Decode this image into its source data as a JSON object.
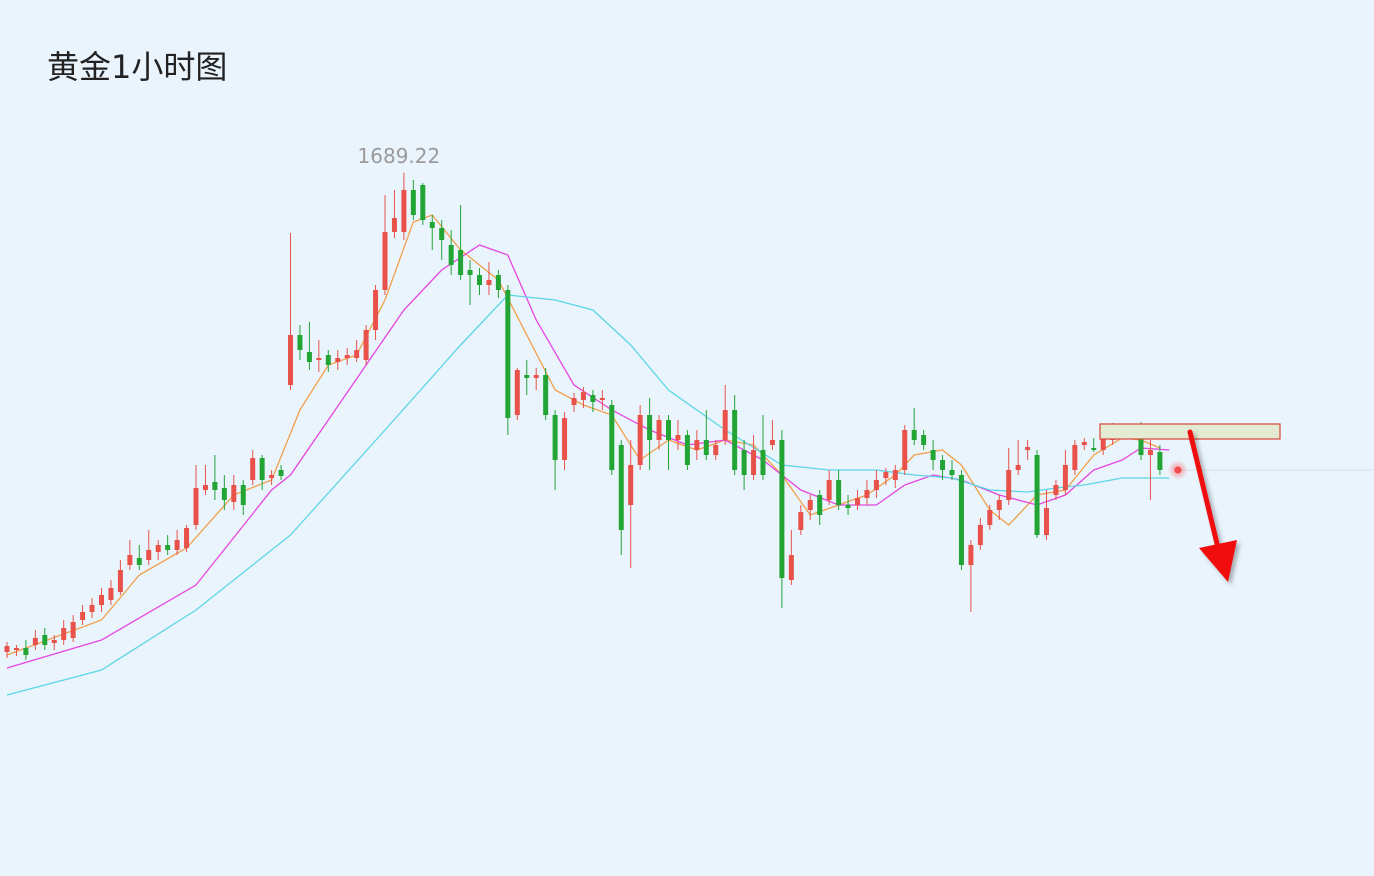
{
  "chart_data": {
    "type": "candlestick",
    "title": "黄金1小时图",
    "up_color": "#e8524a",
    "down_color": "#22a535",
    "ylim": [
      1620,
      1700
    ],
    "open": [
      1641.3,
      1641.5,
      1641.7,
      1642.0,
      1643.0,
      1642.2,
      1642.5,
      1642.7,
      1644.5,
      1645.3,
      1646.0,
      1646.5,
      1647.3,
      1650.0,
      1650.7,
      1650.5,
      1651.3,
      1652.0,
      1651.5,
      1651.7,
      1654.0,
      1657.5,
      1658.3,
      1657.7,
      1656.3,
      1658.0,
      1658.5,
      1660.7,
      1658.7,
      1659.5,
      1668.0,
      1673.0,
      1671.3,
      1670.5,
      1671.0,
      1670.3,
      1670.7,
      1670.7,
      1670.5,
      1673.5,
      1677.5,
      1683.3,
      1683.3,
      1687.5,
      1688.0,
      1684.3,
      1683.7,
      1682.0,
      1681.5,
      1679.5,
      1679.0,
      1678.0,
      1679.0,
      1677.5,
      1665.0,
      1669.0,
      1668.7,
      1669.0,
      1665.0,
      1660.5,
      1666.0,
      1666.5,
      1667.0,
      1666.5,
      1666.0,
      1662.0,
      1656.0,
      1660.0,
      1665.0,
      1662.5,
      1664.5,
      1662.5,
      1663.0,
      1661.5,
      1662.5,
      1661.0,
      1662.5,
      1665.5,
      1661.5,
      1659.0,
      1661.5,
      1662.0,
      1662.5,
      1648.5,
      1653.5,
      1655.5,
      1657.0,
      1656.5,
      1658.5,
      1656.0,
      1656.0,
      1656.7,
      1657.5,
      1658.7,
      1658.5,
      1659.5,
      1663.5,
      1663.0,
      1661.5,
      1660.5,
      1659.5,
      1659.0,
      1650.0,
      1652.0,
      1654.0,
      1655.5,
      1656.5,
      1659.5,
      1661.5,
      1661.0,
      1653.0,
      1657.0,
      1657.5,
      1659.5,
      1662.0,
      1661.7,
      1661.5,
      1662.5,
      1663.3,
      1663.5,
      1664.0,
      1661.0,
      1661.3
    ],
    "high": [
      1642.3,
      1642.0,
      1642.5,
      1643.5,
      1643.7,
      1643.0,
      1644.5,
      1645.0,
      1646.0,
      1646.7,
      1647.7,
      1648.5,
      1650.5,
      1652.5,
      1652.0,
      1653.5,
      1652.5,
      1653.0,
      1653.5,
      1654.0,
      1660.0,
      1660.0,
      1661.0,
      1659.0,
      1659.0,
      1658.5,
      1661.5,
      1661.0,
      1659.5,
      1660.0,
      1683.2,
      1674.0,
      1674.3,
      1672.5,
      1671.5,
      1671.5,
      1671.7,
      1672.5,
      1674.0,
      1678.0,
      1687.0,
      1687.5,
      1689.22,
      1688.5,
      1688.2,
      1685.0,
      1684.5,
      1683.5,
      1686.0,
      1680.5,
      1679.7,
      1680.3,
      1679.5,
      1678.0,
      1669.7,
      1670.5,
      1669.7,
      1669.7,
      1665.5,
      1665.3,
      1667.2,
      1667.8,
      1667.5,
      1667.5,
      1666.5,
      1662.5,
      1662.5,
      1666.0,
      1666.7,
      1665.0,
      1665.0,
      1664.5,
      1663.5,
      1663.5,
      1665.5,
      1662.5,
      1668.0,
      1667.0,
      1662.5,
      1663.0,
      1665.0,
      1664.5,
      1663.5,
      1653.5,
      1656.0,
      1657.0,
      1657.5,
      1659.5,
      1659.5,
      1657.0,
      1657.5,
      1658.5,
      1659.5,
      1659.7,
      1660.0,
      1664.0,
      1665.7,
      1663.5,
      1662.5,
      1661.0,
      1660.5,
      1659.5,
      1652.5,
      1654.7,
      1656.0,
      1657.0,
      1661.7,
      1662.5,
      1662.5,
      1661.5,
      1657.5,
      1658.5,
      1661.5,
      1662.5,
      1662.7,
      1662.7,
      1663.5,
      1664.2,
      1664.0,
      1664.0,
      1664.3,
      1662.5,
      1662.0
    ],
    "low": [
      1640.7,
      1640.9,
      1640.5,
      1641.5,
      1641.5,
      1641.5,
      1642.0,
      1642.3,
      1644.0,
      1644.7,
      1645.3,
      1646.0,
      1647.0,
      1649.5,
      1649.5,
      1650.0,
      1650.5,
      1651.0,
      1651.0,
      1651.3,
      1653.5,
      1657.0,
      1656.5,
      1655.5,
      1655.5,
      1655.0,
      1658.0,
      1657.5,
      1658.0,
      1658.5,
      1667.5,
      1670.5,
      1669.5,
      1669.3,
      1669.3,
      1669.5,
      1670.0,
      1670.3,
      1670.0,
      1672.5,
      1677.0,
      1682.7,
      1682.5,
      1684.5,
      1684.0,
      1681.5,
      1680.5,
      1679.0,
      1678.5,
      1676.0,
      1677.0,
      1677.0,
      1676.7,
      1663.0,
      1664.5,
      1667.0,
      1667.5,
      1664.5,
      1657.5,
      1659.5,
      1665.3,
      1665.7,
      1665.3,
      1665.5,
      1659.0,
      1651.0,
      1649.7,
      1659.5,
      1659.5,
      1661.5,
      1659.5,
      1661.5,
      1659.5,
      1660.5,
      1660.5,
      1660.5,
      1662.0,
      1659.0,
      1657.5,
      1658.5,
      1658.5,
      1661.5,
      1645.7,
      1648.0,
      1653.0,
      1654.5,
      1654.0,
      1656.0,
      1655.5,
      1655.0,
      1655.5,
      1656.0,
      1656.7,
      1658.0,
      1657.7,
      1659.0,
      1662.0,
      1661.5,
      1659.5,
      1658.5,
      1658.5,
      1649.5,
      1645.3,
      1651.5,
      1653.5,
      1654.5,
      1656.0,
      1659.0,
      1660.5,
      1652.7,
      1652.5,
      1656.5,
      1657.0,
      1659.0,
      1661.5,
      1661.3,
      1661.0,
      1662.0,
      1662.9,
      1663.0,
      1660.5,
      1656.5,
      1659.0
    ],
    "close": [
      1641.9,
      1641.7,
      1641.0,
      1642.7,
      1642.0,
      1642.5,
      1643.7,
      1644.3,
      1645.3,
      1646.0,
      1647.0,
      1647.7,
      1649.5,
      1651.0,
      1650.0,
      1651.5,
      1652.0,
      1651.5,
      1652.5,
      1653.7,
      1657.7,
      1658.0,
      1657.5,
      1656.5,
      1658.0,
      1656.0,
      1660.7,
      1658.5,
      1659.0,
      1658.9,
      1673.0,
      1671.5,
      1670.3,
      1670.7,
      1670.0,
      1670.7,
      1671.0,
      1671.5,
      1673.5,
      1677.5,
      1683.3,
      1684.7,
      1687.5,
      1685.0,
      1684.5,
      1683.7,
      1682.5,
      1680.0,
      1679.0,
      1679.0,
      1678.0,
      1678.5,
      1677.5,
      1664.7,
      1669.5,
      1668.7,
      1669.0,
      1665.0,
      1660.5,
      1664.7,
      1666.7,
      1667.3,
      1666.3,
      1666.7,
      1659.5,
      1653.5,
      1660.0,
      1665.0,
      1662.5,
      1664.5,
      1662.5,
      1663.0,
      1660.0,
      1662.5,
      1661.0,
      1662.0,
      1665.5,
      1659.5,
      1659.0,
      1661.5,
      1659.0,
      1662.5,
      1648.7,
      1651.0,
      1655.3,
      1656.5,
      1655.0,
      1658.5,
      1656.0,
      1655.7,
      1656.7,
      1657.5,
      1658.5,
      1659.3,
      1659.5,
      1663.5,
      1662.5,
      1662.0,
      1660.5,
      1659.5,
      1659.0,
      1650.0,
      1652.0,
      1654.0,
      1655.5,
      1656.5,
      1659.5,
      1660.0,
      1661.8,
      1653.0,
      1655.7,
      1658.0,
      1660.0,
      1662.0,
      1662.3,
      1661.5,
      1663.0,
      1664.0,
      1663.7,
      1663.7,
      1661.0,
      1661.5,
      1659.5
    ],
    "high_label_index": 42,
    "lines": [
      {
        "color": "#f0a04a",
        "x": [
          0,
          10,
          14,
          19,
          24,
          28,
          31,
          34,
          37,
          40,
          43,
          45,
          48,
          52,
          55,
          58,
          61,
          64,
          67,
          70,
          73,
          76,
          79,
          82,
          85,
          88,
          91,
          94,
          96,
          99,
          101,
          104,
          106,
          109,
          112,
          115,
          118,
          120,
          122
        ],
        "values": [
          1641.0,
          1644.5,
          1649.0,
          1651.7,
          1657.0,
          1658.5,
          1665.5,
          1670.0,
          1671.0,
          1676.5,
          1684.3,
          1685.0,
          1681.5,
          1678.5,
          1673.0,
          1667.5,
          1666.0,
          1665.0,
          1660.5,
          1662.5,
          1661.5,
          1662.5,
          1662.0,
          1659.0,
          1655.0,
          1656.0,
          1657.0,
          1659.0,
          1661.0,
          1661.5,
          1660.0,
          1655.5,
          1654.0,
          1657.0,
          1657.5,
          1661.0,
          1662.7,
          1662.5,
          1661.7
        ]
      },
      {
        "color": "#e646e0",
        "x": [
          0,
          10,
          20,
          28,
          30,
          38,
          42,
          46,
          50,
          53,
          56,
          60,
          64,
          68,
          72,
          76,
          80,
          84,
          88,
          92,
          95,
          98,
          101,
          105,
          109,
          112,
          115,
          118,
          120,
          123
        ],
        "values": [
          1639.7,
          1642.5,
          1648.0,
          1657.5,
          1659.0,
          1670.0,
          1675.5,
          1679.5,
          1682.0,
          1681.0,
          1674.5,
          1668.0,
          1665.5,
          1663.5,
          1662.0,
          1662.5,
          1660.5,
          1657.5,
          1656.0,
          1656.0,
          1658.0,
          1659.0,
          1658.5,
          1657.0,
          1656.0,
          1657.0,
          1659.5,
          1660.5,
          1661.7,
          1661.5
        ]
      },
      {
        "color": "#5cd6e6",
        "x": [
          0,
          10,
          20,
          30,
          40,
          48,
          53,
          58,
          62,
          66,
          70,
          76,
          82,
          87,
          92,
          96,
          100,
          104,
          108,
          111,
          114,
          118,
          123
        ],
        "values": [
          1637.0,
          1639.5,
          1645.5,
          1653.0,
          1663.5,
          1672.0,
          1677.0,
          1676.5,
          1675.5,
          1672.0,
          1667.5,
          1663.5,
          1660.0,
          1659.5,
          1659.5,
          1659.0,
          1658.7,
          1657.5,
          1657.3,
          1657.7,
          1658.0,
          1658.7,
          1658.7
        ]
      }
    ]
  }
}
